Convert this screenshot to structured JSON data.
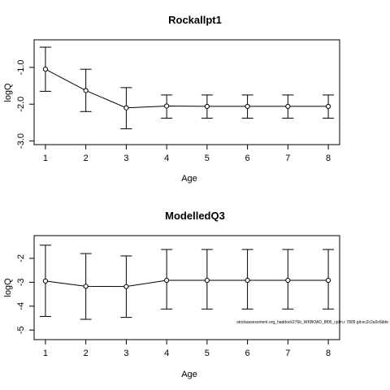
{
  "chart_data": [
    {
      "type": "line",
      "title": "Rockallpt1",
      "xlabel": "Age",
      "ylabel": "logQ",
      "x": [
        1,
        2,
        3,
        4,
        5,
        6,
        7,
        8
      ],
      "values": [
        -1.05,
        -1.63,
        -2.1,
        -2.05,
        -2.06,
        -2.06,
        -2.06,
        -2.06
      ],
      "lower": [
        -1.65,
        -2.2,
        -2.67,
        -2.38,
        -2.38,
        -2.38,
        -2.38,
        -2.38
      ],
      "upper": [
        -0.45,
        -1.05,
        -1.55,
        -1.75,
        -1.75,
        -1.75,
        -1.75,
        -1.75
      ],
      "xticks": [
        "1",
        "2",
        "3",
        "4",
        "5",
        "6",
        "7",
        "8"
      ],
      "yticks": [
        "-1.0",
        "-2.0",
        "-3.0"
      ],
      "yticks_values": [
        -1,
        -2,
        -3
      ],
      "xlim": [
        0.72,
        8.28
      ],
      "ylim": [
        -3.1,
        -0.25
      ],
      "marker": "open-circle",
      "error_bars": true
    },
    {
      "type": "line",
      "title": "ModelledQ3",
      "xlabel": "Age",
      "ylabel": "logQ",
      "x": [
        1,
        2,
        3,
        4,
        5,
        6,
        7,
        8
      ],
      "values": [
        -2.95,
        -3.17,
        -3.18,
        -2.92,
        -2.92,
        -2.92,
        -2.92,
        -2.92
      ],
      "lower": [
        -4.43,
        -4.55,
        -4.47,
        -4.12,
        -4.12,
        -4.12,
        -4.12,
        -4.12
      ],
      "upper": [
        -1.45,
        -1.8,
        -1.9,
        -1.63,
        -1.63,
        -1.63,
        -1.63,
        -1.63
      ],
      "xticks": [
        "1",
        "2",
        "3",
        "4",
        "5",
        "6",
        "7",
        "8"
      ],
      "yticks": [
        "-2",
        "-3",
        "-4",
        "-5"
      ],
      "yticks_values": [
        -2,
        -3,
        -4,
        -5
      ],
      "xlim": [
        0.72,
        8.28
      ],
      "ylim": [
        -5.4,
        -1.05
      ],
      "marker": "open-circle",
      "error_bars": true,
      "annotation": "stockassessment.org_haddock276b_WKBOAD_8f05_cplm.r 7805 git:ec2c2a0c6dde"
    }
  ]
}
